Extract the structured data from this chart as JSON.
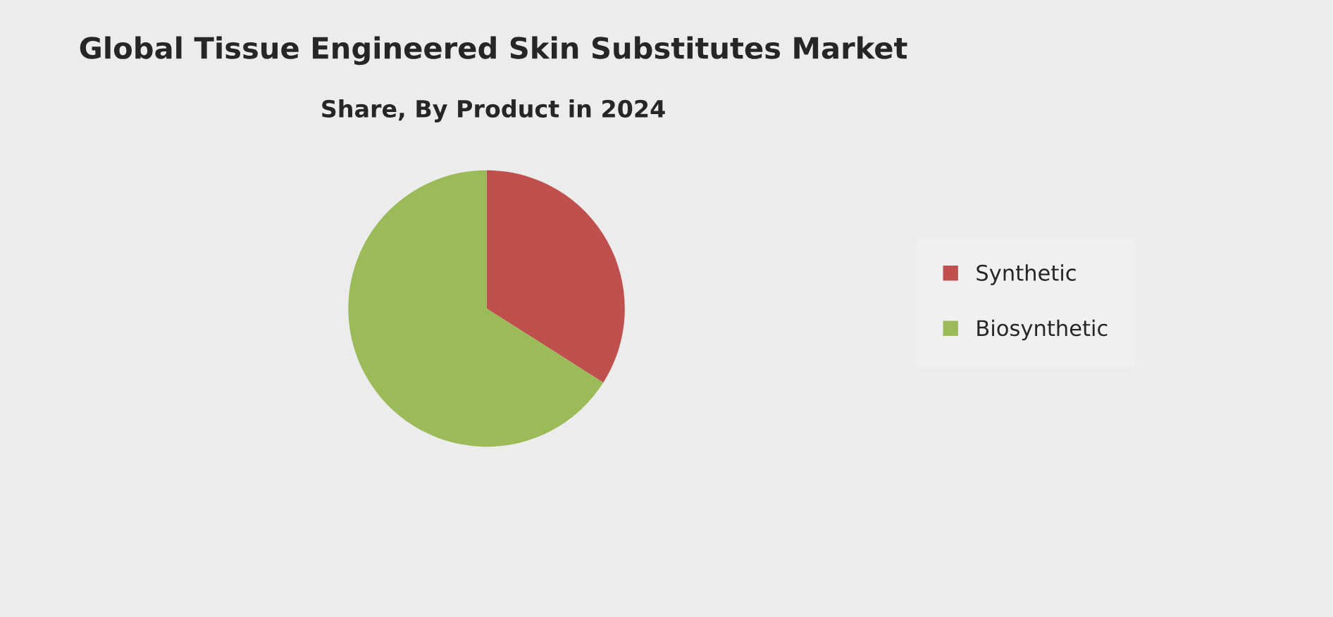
{
  "chart_data": {
    "type": "pie",
    "title": "Global Tissue Engineered Skin Substitutes Market",
    "subtitle": "Share, By Product in 2024",
    "categories": [
      "Synthetic",
      "Biosynthetic"
    ],
    "values": [
      34,
      66
    ],
    "colors": [
      "#c0504d",
      "#9bbb59"
    ],
    "legend": "right"
  }
}
